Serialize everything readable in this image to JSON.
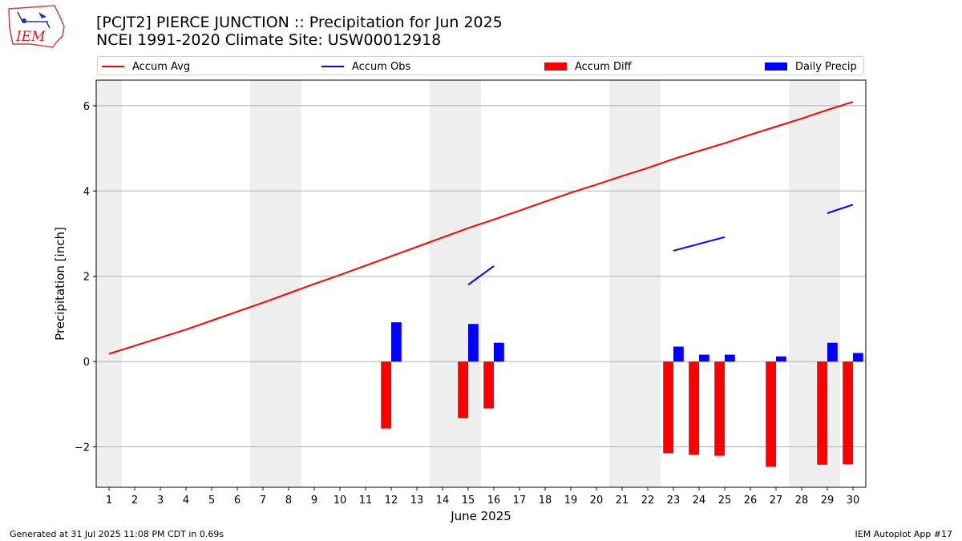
{
  "header": {
    "title": "[PCJT2] PIERCE JUNCTION :: Precipitation for Jun 2025",
    "subtitle": "NCEI 1991-2020 Climate Site: USW00012918",
    "logo_text": "IEM"
  },
  "footer": {
    "left": "Generated at 31 Jul 2025 11:08 PM CDT in 0.69s",
    "right": "IEM Autoplot App #17"
  },
  "legend": {
    "placement": "top, horizontal strip above plot",
    "items": [
      {
        "label": "Accum Avg",
        "kind": "line",
        "color": "#ff0000"
      },
      {
        "label": "Accum Obs",
        "kind": "line",
        "color": "#0000ff"
      },
      {
        "label": "Accum Diff",
        "kind": "bar",
        "color": "#ff0000"
      },
      {
        "label": "Daily Precip",
        "kind": "bar",
        "color": "#0000ff"
      }
    ]
  },
  "chart_data": {
    "type": "bar",
    "title": "[PCJT2] PIERCE JUNCTION :: Precipitation for Jun 2025",
    "subtitle": "NCEI 1991-2020 Climate Site: USW00012918",
    "xlabel": "June 2025",
    "ylabel": "Precipitation [inch]",
    "xlim": [
      0.5,
      30.5
    ],
    "ylim": [
      -2.95,
      6.6
    ],
    "grid": "horizontal",
    "days": [
      1,
      2,
      3,
      4,
      5,
      6,
      7,
      8,
      9,
      10,
      11,
      12,
      13,
      14,
      15,
      16,
      17,
      18,
      19,
      20,
      21,
      22,
      23,
      24,
      25,
      26,
      27,
      28,
      29,
      30
    ],
    "x_tick_labels": [
      "1",
      "2",
      "3",
      "4",
      "5",
      "6",
      "7",
      "8",
      "9",
      "10",
      "11",
      "12",
      "13",
      "14",
      "15",
      "16",
      "17",
      "18",
      "19",
      "20",
      "21",
      "22",
      "23",
      "24",
      "25",
      "26",
      "27",
      "28",
      "29",
      "30"
    ],
    "y_ticks": [
      -2,
      0,
      2,
      4,
      6
    ],
    "y_tick_labels": [
      "−2",
      "0",
      "2",
      "4",
      "6"
    ],
    "weekend_days": [
      1,
      7,
      8,
      14,
      15,
      21,
      22,
      28,
      29
    ],
    "weekend_shade_color": "#eeeeee",
    "series": [
      {
        "name": "Accum Avg",
        "type": "line",
        "color": "#ff0000",
        "values": [
          0.18,
          0.37,
          0.56,
          0.75,
          0.96,
          1.17,
          1.38,
          1.6,
          1.82,
          2.03,
          2.25,
          2.47,
          2.69,
          2.91,
          3.13,
          3.33,
          3.54,
          3.75,
          3.96,
          4.15,
          4.35,
          4.54,
          4.75,
          4.94,
          5.12,
          5.32,
          5.51,
          5.7,
          5.9,
          6.09
        ]
      },
      {
        "name": "Accum Obs",
        "type": "line",
        "color": "#0000ff",
        "values": [
          null,
          null,
          null,
          null,
          null,
          null,
          null,
          null,
          null,
          null,
          null,
          null,
          null,
          null,
          1.8,
          2.24,
          null,
          null,
          null,
          null,
          null,
          null,
          2.6,
          2.76,
          2.92,
          null,
          null,
          null,
          3.48,
          3.68
        ]
      },
      {
        "name": "Accum Diff",
        "type": "bar",
        "color": "#ff0000",
        "values": [
          null,
          null,
          null,
          null,
          null,
          null,
          null,
          null,
          null,
          null,
          null,
          -1.57,
          null,
          null,
          -1.33,
          -1.1,
          null,
          null,
          null,
          null,
          null,
          null,
          -2.15,
          -2.19,
          -2.21,
          null,
          -2.47,
          null,
          -2.42,
          -2.41
        ]
      },
      {
        "name": "Daily Precip",
        "type": "bar",
        "color": "#0000ff",
        "values": [
          null,
          null,
          null,
          null,
          null,
          null,
          null,
          null,
          null,
          null,
          null,
          0.92,
          null,
          null,
          0.88,
          0.44,
          null,
          null,
          null,
          null,
          null,
          null,
          0.35,
          0.16,
          0.16,
          null,
          0.12,
          null,
          0.44,
          0.2
        ]
      }
    ]
  }
}
